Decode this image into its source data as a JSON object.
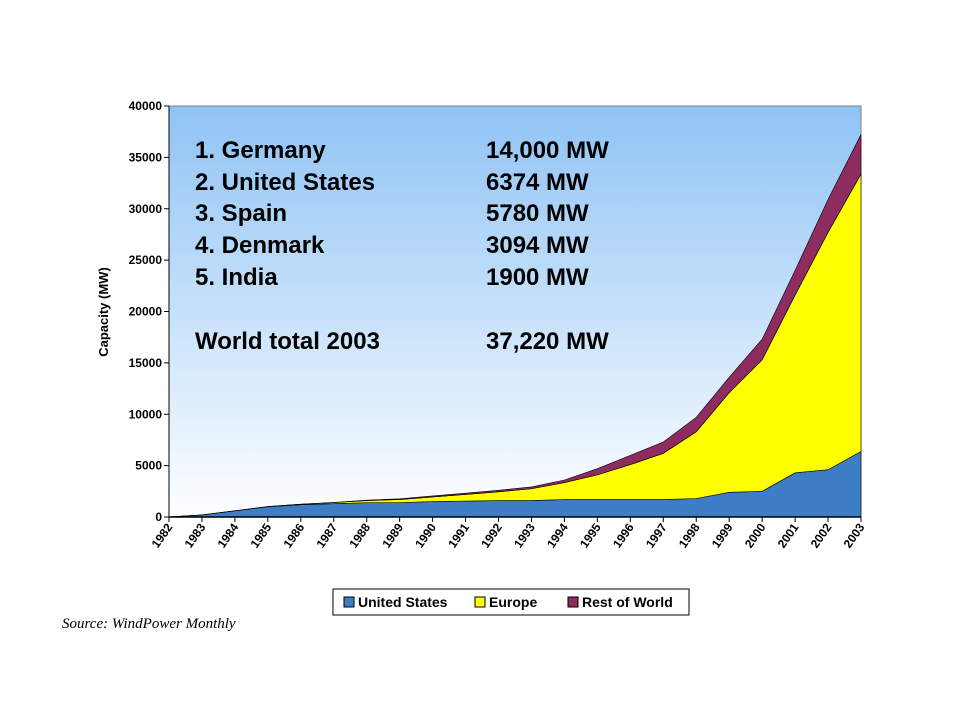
{
  "chart_data": {
    "type": "area",
    "stacked": true,
    "categories": [
      "1982",
      "1983",
      "1984",
      "1985",
      "1986",
      "1987",
      "1988",
      "1989",
      "1990",
      "1991",
      "1992",
      "1993",
      "1994",
      "1995",
      "1996",
      "1997",
      "1998",
      "1999",
      "2000",
      "2001",
      "2002",
      "2003"
    ],
    "ylabel": "Capacity (MW)",
    "xlabel": "",
    "ylim": [
      0,
      40000
    ],
    "yticks": [
      0,
      5000,
      10000,
      15000,
      20000,
      25000,
      30000,
      35000,
      40000
    ],
    "grid": false,
    "legend_position": "bottom",
    "series": [
      {
        "name": "United States",
        "color": "#3c7dc6",
        "values": [
          10,
          200,
          600,
          1000,
          1200,
          1300,
          1400,
          1400,
          1500,
          1550,
          1600,
          1600,
          1700,
          1700,
          1700,
          1700,
          1800,
          2400,
          2500,
          4300,
          4600,
          6374
        ]
      },
      {
        "name": "Europe",
        "color": "#ffff00",
        "values": [
          0,
          0,
          0,
          20,
          50,
          100,
          200,
          300,
          450,
          650,
          850,
          1150,
          1650,
          2400,
          3400,
          4500,
          6500,
          9700,
          12800,
          17300,
          23100,
          27000
        ]
      },
      {
        "name": "Rest of World",
        "color": "#8e2b5f",
        "values": [
          0,
          0,
          0,
          0,
          0,
          20,
          40,
          70,
          100,
          120,
          150,
          180,
          250,
          600,
          900,
          1100,
          1400,
          1500,
          2000,
          2400,
          3200,
          3846
        ]
      }
    ],
    "annotations": [
      {
        "rank": "1. Germany",
        "value": "14,000 MW"
      },
      {
        "rank": "2. United States",
        "value": "6374 MW"
      },
      {
        "rank": "3. Spain",
        "value": "5780 MW"
      },
      {
        "rank": "4. Denmark",
        "value": "3094 MW"
      },
      {
        "rank": "5. India",
        "value": "1900 MW"
      },
      {
        "rank": "World total 2003",
        "value": "37,220 MW"
      }
    ]
  },
  "source": "Source: WindPower Monthly"
}
